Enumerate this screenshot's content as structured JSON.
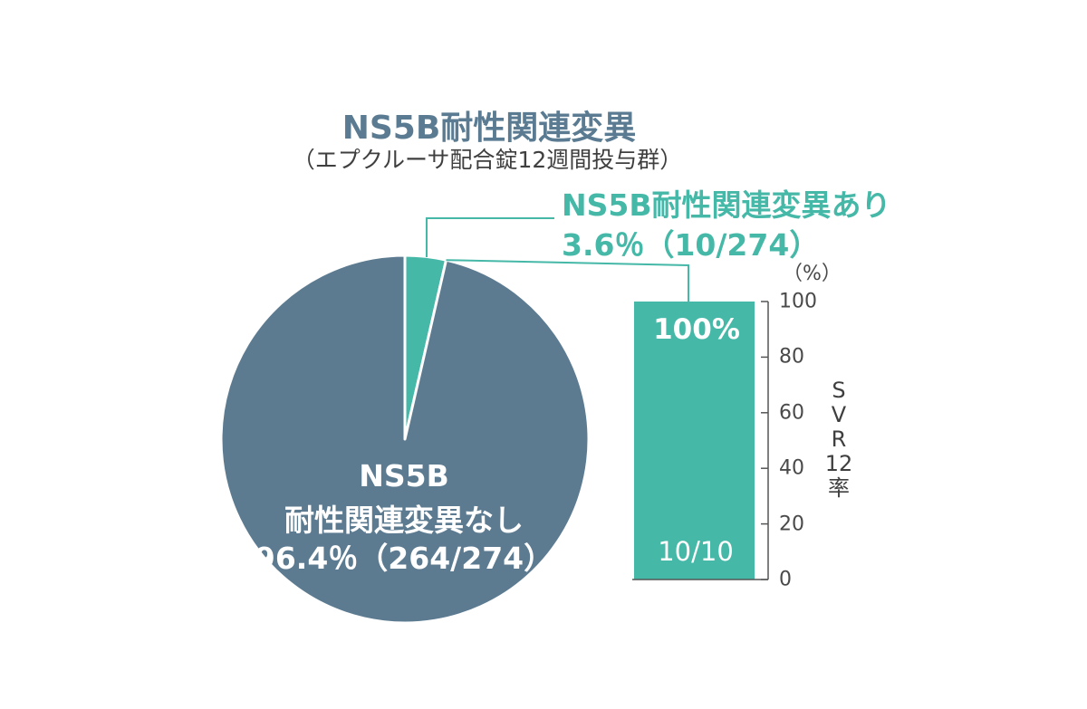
{
  "chart_data": [
    {
      "type": "pie",
      "title": "NS5B耐性関連変異",
      "subtitle": "（エプクルーサ配合錠12週間投与群）",
      "slices": [
        {
          "label": "NS5B耐性関連変異あり",
          "percent": 3.6,
          "percent_text": "3.6％（10/274）",
          "count": 10,
          "total": 274,
          "color": "#45b8a8"
        },
        {
          "label_line1": "NS5B",
          "label_line2": "耐性関連変異なし",
          "percent": 96.4,
          "percent_text": "96.4％（264/274）",
          "count": 264,
          "total": 274,
          "color": "#5c7b91"
        }
      ]
    },
    {
      "type": "bar",
      "categories": [
        ""
      ],
      "values": [
        100
      ],
      "value_label": "100%",
      "count_label": "10/10",
      "color": "#45b8a8",
      "ylabel": "SVR12率",
      "y_unit": "（%）",
      "ylim": [
        0,
        100
      ],
      "yticks": [
        0,
        20,
        40,
        60,
        80,
        100
      ]
    }
  ]
}
